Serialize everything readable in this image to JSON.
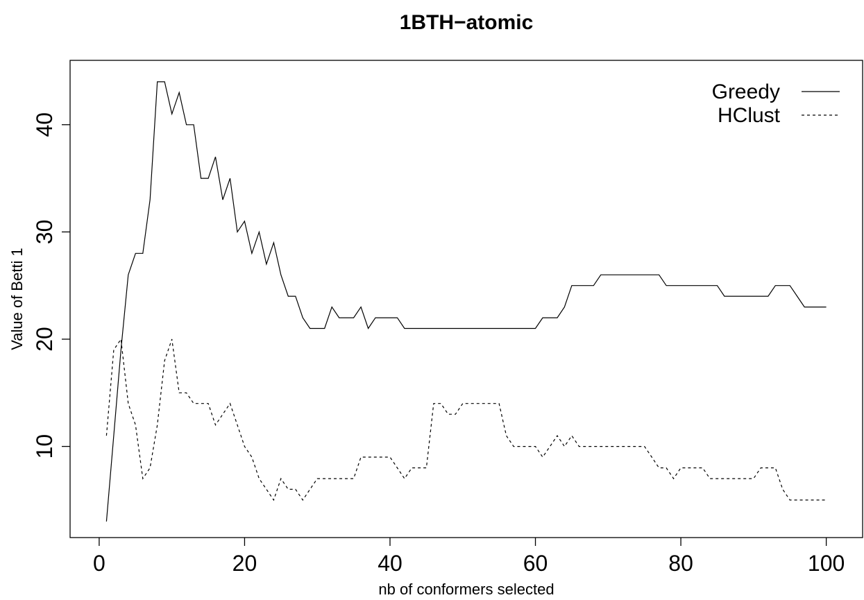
{
  "chart_data": {
    "type": "line",
    "title": "1BTH−atomic",
    "xlabel": "nb of conformers selected",
    "ylabel": "Value of Betti 1",
    "xlim": [
      -4,
      105
    ],
    "ylim": [
      1.5,
      46
    ],
    "xticks": [
      0,
      20,
      40,
      60,
      80,
      100
    ],
    "yticks": [
      10,
      20,
      30,
      40
    ],
    "legend_position": "top-right",
    "series": [
      {
        "name": "Greedy",
        "line_style": "solid",
        "x": [
          1,
          2,
          3,
          4,
          5,
          6,
          7,
          8,
          9,
          10,
          11,
          12,
          13,
          14,
          15,
          16,
          17,
          18,
          19,
          20,
          21,
          22,
          23,
          24,
          25,
          26,
          27,
          28,
          29,
          30,
          31,
          32,
          33,
          34,
          35,
          36,
          37,
          38,
          39,
          40,
          41,
          42,
          43,
          44,
          45,
          46,
          47,
          48,
          49,
          50,
          51,
          52,
          53,
          54,
          55,
          56,
          57,
          58,
          59,
          60,
          61,
          62,
          63,
          64,
          65,
          66,
          67,
          68,
          69,
          70,
          71,
          72,
          73,
          74,
          75,
          76,
          77,
          78,
          79,
          80,
          81,
          82,
          83,
          84,
          85,
          86,
          87,
          88,
          89,
          90,
          91,
          92,
          93,
          94,
          95,
          96,
          97,
          98,
          99,
          100
        ],
        "y": [
          3,
          11,
          19,
          26,
          28,
          28,
          33,
          44,
          44,
          41,
          43,
          40,
          40,
          35,
          35,
          37,
          33,
          35,
          30,
          31,
          28,
          30,
          27,
          29,
          26,
          24,
          24,
          22,
          21,
          21,
          21,
          23,
          22,
          22,
          22,
          23,
          21,
          22,
          22,
          22,
          22,
          21,
          21,
          21,
          21,
          21,
          21,
          21,
          21,
          21,
          21,
          21,
          21,
          21,
          21,
          21,
          21,
          21,
          21,
          21,
          22,
          22,
          22,
          23,
          25,
          25,
          25,
          25,
          26,
          26,
          26,
          26,
          26,
          26,
          26,
          26,
          26,
          25,
          25,
          25,
          25,
          25,
          25,
          25,
          25,
          24,
          24,
          24,
          24,
          24,
          24,
          24,
          25,
          25,
          25,
          24,
          23,
          23,
          23,
          23
        ]
      },
      {
        "name": "HClust",
        "line_style": "dashed",
        "x": [
          1,
          2,
          3,
          4,
          5,
          6,
          7,
          8,
          9,
          10,
          11,
          12,
          13,
          14,
          15,
          16,
          17,
          18,
          19,
          20,
          21,
          22,
          23,
          24,
          25,
          26,
          27,
          28,
          29,
          30,
          31,
          32,
          33,
          34,
          35,
          36,
          37,
          38,
          39,
          40,
          41,
          42,
          43,
          44,
          45,
          46,
          47,
          48,
          49,
          50,
          51,
          52,
          53,
          54,
          55,
          56,
          57,
          58,
          59,
          60,
          61,
          62,
          63,
          64,
          65,
          66,
          67,
          68,
          69,
          70,
          71,
          72,
          73,
          74,
          75,
          76,
          77,
          78,
          79,
          80,
          81,
          82,
          83,
          84,
          85,
          86,
          87,
          88,
          89,
          90,
          91,
          92,
          93,
          94,
          95,
          96,
          97,
          98,
          99,
          100
        ],
        "y": [
          11,
          19,
          20,
          14,
          12,
          7,
          8,
          12,
          18,
          20,
          15,
          15,
          14,
          14,
          14,
          12,
          13,
          14,
          12,
          10,
          9,
          7,
          6,
          5,
          7,
          6,
          6,
          5,
          6,
          7,
          7,
          7,
          7,
          7,
          7,
          9,
          9,
          9,
          9,
          9,
          8,
          7,
          8,
          8,
          8,
          14,
          14,
          13,
          13,
          14,
          14,
          14,
          14,
          14,
          14,
          11,
          10,
          10,
          10,
          10,
          9,
          10,
          11,
          10,
          11,
          10,
          10,
          10,
          10,
          10,
          10,
          10,
          10,
          10,
          10,
          9,
          8,
          8,
          7,
          8,
          8,
          8,
          8,
          7,
          7,
          7,
          7,
          7,
          7,
          7,
          8,
          8,
          8,
          6,
          5,
          5,
          5,
          5,
          5,
          5
        ]
      }
    ]
  }
}
